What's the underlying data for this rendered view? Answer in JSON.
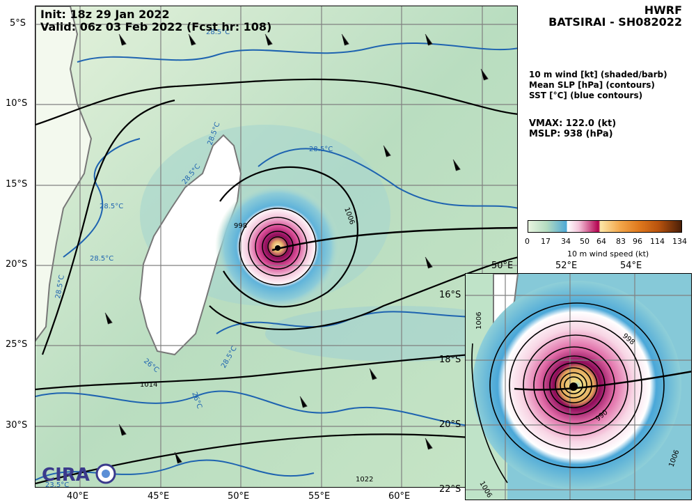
{
  "header": {
    "init": "Init:   18z 29 Jan 2022",
    "valid": "Valid: 06z 03 Feb 2022 (Fcst hr: 108)",
    "model": "HWRF",
    "storm": "BATSIRAI - SH082022"
  },
  "legend": {
    "line1": "10 m wind [kt] (shaded/barb)",
    "line2": "Mean SLP [hPa] (contours)",
    "line3": "SST [°C] (blue contours)"
  },
  "stats": {
    "vmax": "VMAX: 122.0 (kt)",
    "mslp": "MSLP:  938 (hPa)"
  },
  "colorbar": {
    "ticks": [
      "0",
      "17",
      "34",
      "50",
      "64",
      "83",
      "96",
      "114",
      "134"
    ],
    "label": "10 m wind speed (kt)"
  },
  "main_axes": {
    "lat_labels": [
      "5°S",
      "10°S",
      "15°S",
      "20°S",
      "25°S",
      "30°S"
    ],
    "lon_labels": [
      "40°E",
      "45°E",
      "50°E",
      "55°E",
      "60°E"
    ]
  },
  "inset_axes": {
    "lat_labels": [
      "16°S",
      "18°S",
      "20°S",
      "22°S"
    ],
    "lon_labels": [
      "50°E",
      "52°E",
      "54°E"
    ]
  },
  "contour_labels": {
    "slp": [
      "1006",
      "998",
      "1014",
      "1022",
      "990",
      "998",
      "1006",
      "1006",
      "1006"
    ],
    "sst": [
      "28.5°C",
      "28.5°C",
      "28.5°C",
      "28.5°C",
      "28.5°C",
      "28.5°C",
      "28.5°C",
      "26°C",
      "23.5°C",
      "28.5°C",
      "26°C"
    ]
  },
  "logo": {
    "text": "CIRA"
  },
  "colors": {
    "land": "#ffffff",
    "ocean_base": "#cfe6c4",
    "storm_core": "#b0004f"
  }
}
